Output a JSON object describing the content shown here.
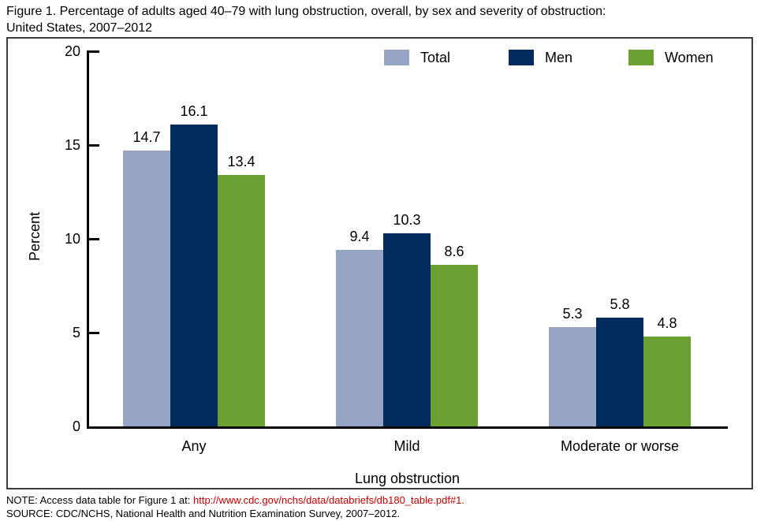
{
  "title_lines": [
    "Figure 1. Percentage of adults aged 40–79 with lung obstruction, overall, by sex and severity of obstruction:",
    "United States, 2007–2012"
  ],
  "chart_data": {
    "type": "bar",
    "title": "Figure 1. Percentage of adults aged 40–79 with lung obstruction, overall, by sex and severity of obstruction: United States, 2007–2012",
    "categories": [
      "Any",
      "Mild",
      "Moderate or worse"
    ],
    "series": [
      {
        "name": "Total",
        "color": "#96a4c6",
        "values": [
          14.7,
          9.4,
          5.3
        ]
      },
      {
        "name": "Men",
        "color": "#002b5c",
        "values": [
          16.1,
          10.3,
          5.8
        ]
      },
      {
        "name": "Women",
        "color": "#6aa132",
        "values": [
          13.4,
          8.6,
          4.8
        ]
      }
    ],
    "xlabel": "Lung obstruction",
    "ylabel": "Percent",
    "ylim": [
      0,
      20
    ],
    "yticks": [
      0,
      5,
      10,
      15,
      20
    ],
    "grid": false,
    "legend_position": "top-right-inside",
    "value_labels": true
  },
  "notes": {
    "note_prefix": "NOTE: Access data table for Figure 1 at: ",
    "note_link": "http://www.cdc.gov/nchs/data/databriefs/db180_table.pdf#1.",
    "source": "SOURCE: CDC/NCHS, National Health and Nutrition Examination Survey, 2007–2012."
  },
  "colors": {
    "link": "#c00000",
    "axis": "#000000"
  }
}
